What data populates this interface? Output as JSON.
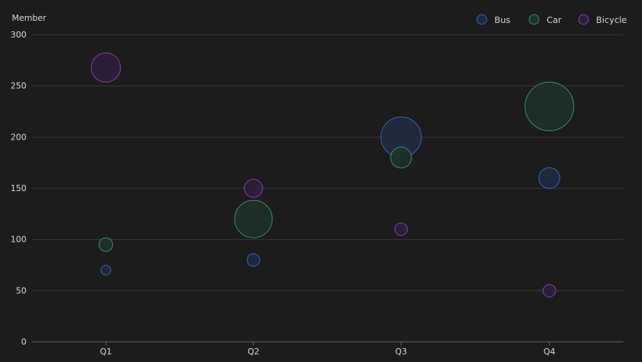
{
  "chart_data": {
    "type": "scatter",
    "subtype": "bubble",
    "title": "",
    "ylabel": "Member",
    "xlabel": "",
    "categories": [
      "Q1",
      "Q2",
      "Q3",
      "Q4"
    ],
    "ylim": [
      0,
      300
    ],
    "yticks": [
      0,
      50,
      100,
      150,
      200,
      250,
      300
    ],
    "grid": true,
    "legend_position": "top-right",
    "series": [
      {
        "name": "Bus",
        "color": "#3d6bbf",
        "fill": "#1f2b40",
        "points": [
          {
            "x": "Q1",
            "y": 70,
            "size": 5
          },
          {
            "x": "Q2",
            "y": 80,
            "size": 10
          },
          {
            "x": "Q3",
            "y": 200,
            "size": 60
          },
          {
            "x": "Q4",
            "y": 160,
            "size": 25
          }
        ]
      },
      {
        "name": "Car",
        "color": "#3f9a6f",
        "fill": "#1d3128",
        "points": [
          {
            "x": "Q1",
            "y": 95,
            "size": 12
          },
          {
            "x": "Q2",
            "y": 120,
            "size": 55
          },
          {
            "x": "Q3",
            "y": 180,
            "size": 25
          },
          {
            "x": "Q4",
            "y": 230,
            "size": 75
          }
        ]
      },
      {
        "name": "Bicycle",
        "color": "#9b3fc2",
        "fill": "#2d1f38",
        "points": [
          {
            "x": "Q1",
            "y": 268,
            "size": 40
          },
          {
            "x": "Q2",
            "y": 150,
            "size": 20
          },
          {
            "x": "Q3",
            "y": 110,
            "size": 10
          },
          {
            "x": "Q4",
            "y": 50,
            "size": 10
          }
        ]
      }
    ]
  }
}
